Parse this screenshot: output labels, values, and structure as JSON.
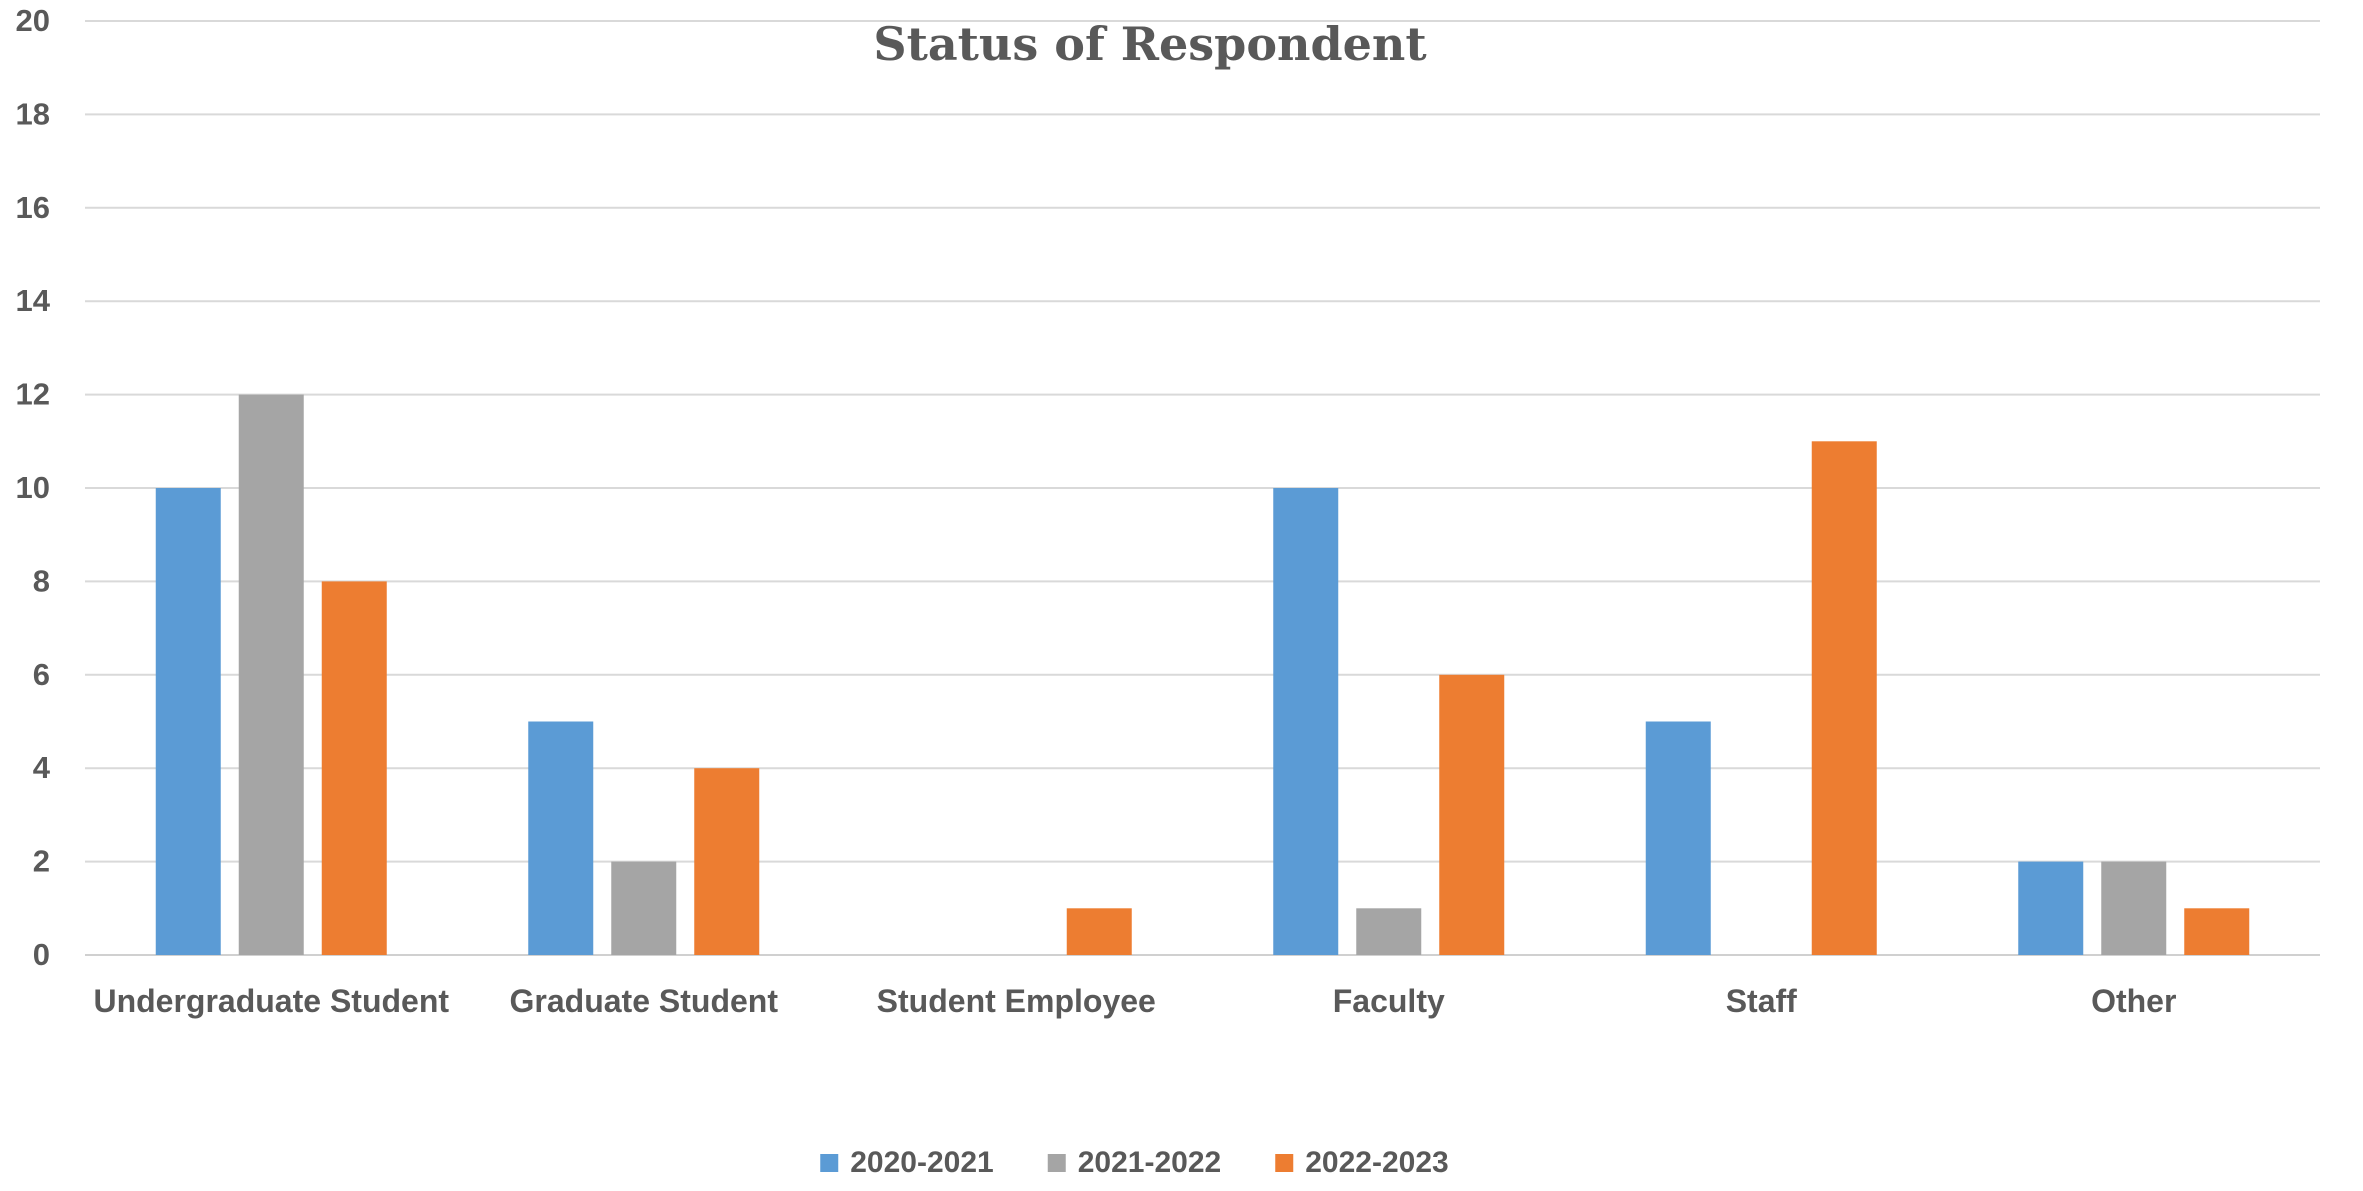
{
  "chart_data": {
    "type": "bar",
    "title": "Status of Respondent",
    "xlabel": "",
    "ylabel": "",
    "ylim": [
      0,
      20
    ],
    "yticks": [
      0,
      2,
      4,
      6,
      8,
      10,
      12,
      14,
      16,
      18,
      20
    ],
    "grid": "horizontal",
    "legend_position": "bottom",
    "categories": [
      "Undergraduate Student",
      "Graduate Student",
      "Student Employee",
      "Faculty",
      "Staff",
      "Other"
    ],
    "series": [
      {
        "name": "2020-2021",
        "color": "#5b9bd5",
        "values": [
          10,
          5,
          0,
          10,
          5,
          2
        ]
      },
      {
        "name": "2021-2022",
        "color": "#a5a5a5",
        "values": [
          12,
          2,
          0,
          1,
          0,
          2
        ]
      },
      {
        "name": "2022-2023",
        "color": "#ed7d31",
        "values": [
          8,
          4,
          1,
          6,
          11,
          1
        ]
      }
    ]
  }
}
